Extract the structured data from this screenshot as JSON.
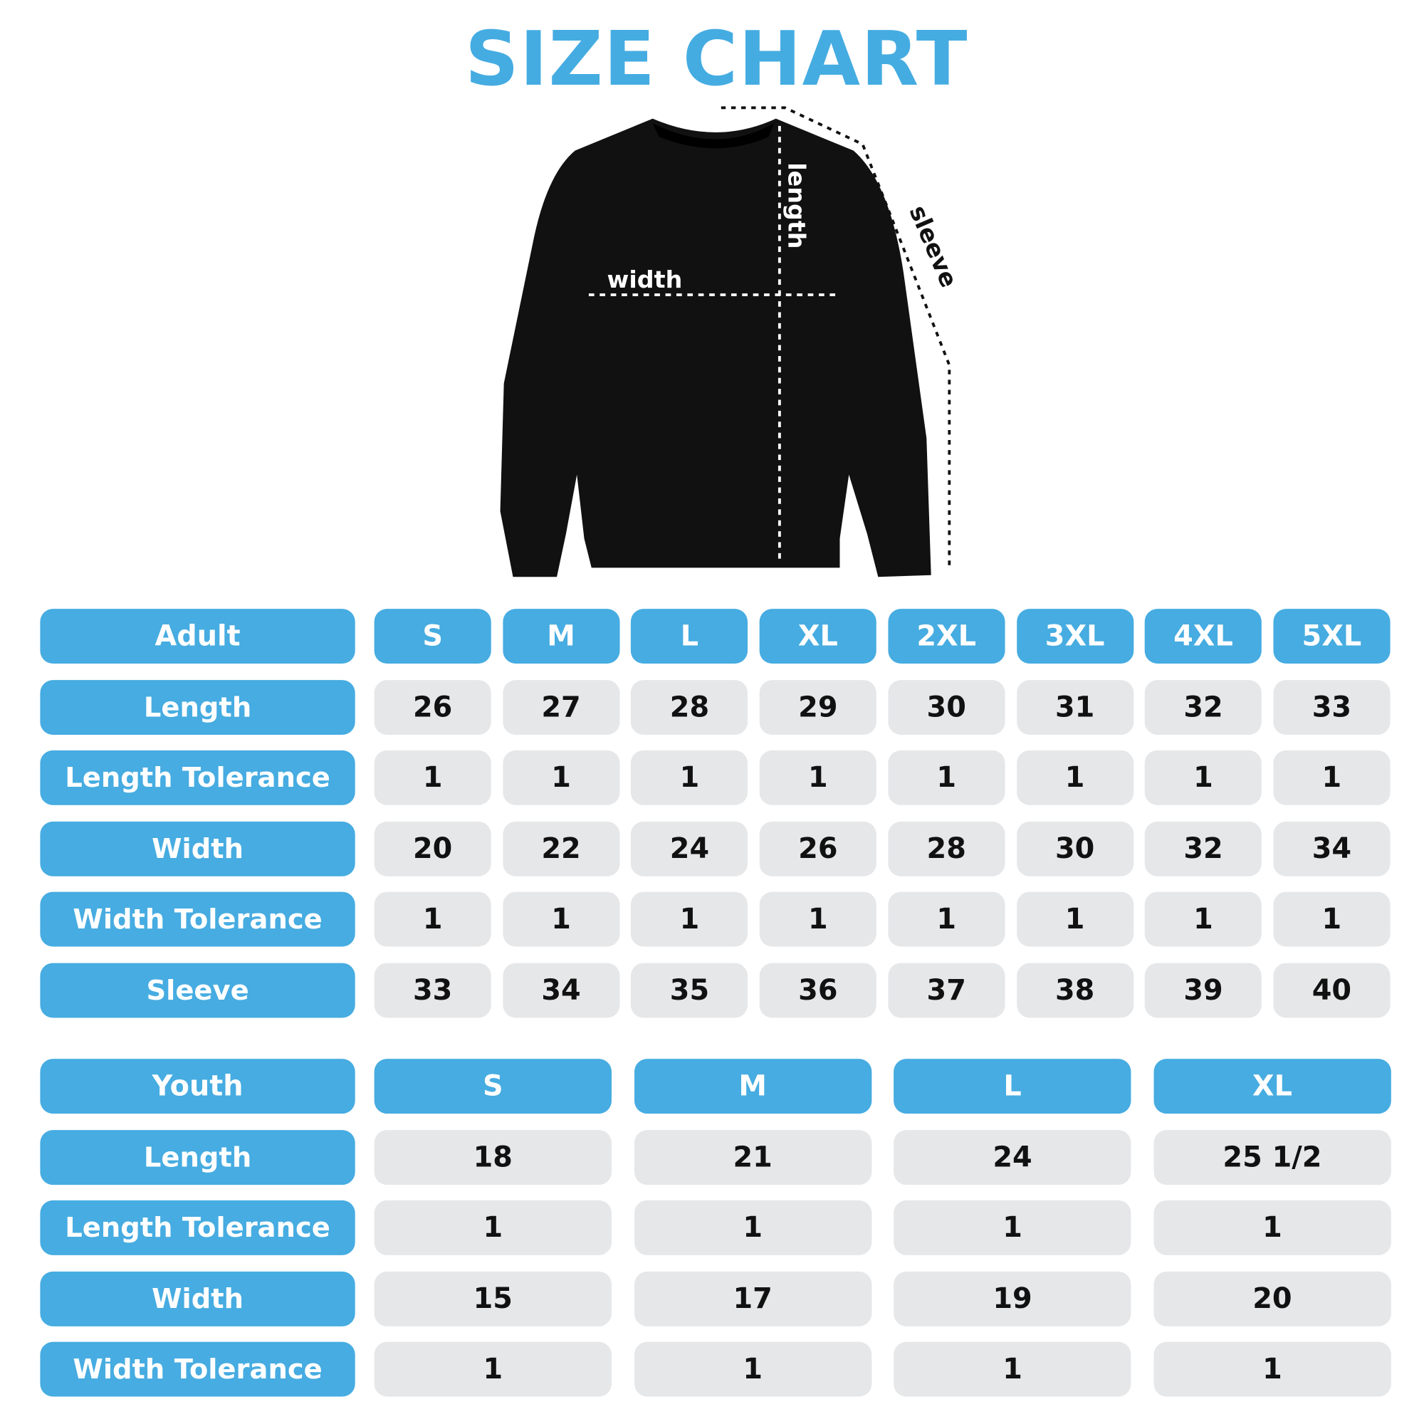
{
  "title": "SIZE CHART",
  "colors": {
    "accent": "#46ace1",
    "cell_bg": "#e6e7e9",
    "garment": "#111111"
  },
  "diagram": {
    "image": "black crewneck sweatshirt",
    "labels": {
      "width": "width",
      "length": "length",
      "sleeve": "sleeve"
    }
  },
  "adult": {
    "header": "Adult",
    "sizes": [
      "S",
      "M",
      "L",
      "XL",
      "2XL",
      "3XL",
      "4XL",
      "5XL"
    ],
    "rows": [
      {
        "label": "Length",
        "values": [
          "26",
          "27",
          "28",
          "29",
          "30",
          "31",
          "32",
          "33"
        ]
      },
      {
        "label": "Length Tolerance",
        "values": [
          "1",
          "1",
          "1",
          "1",
          "1",
          "1",
          "1",
          "1"
        ]
      },
      {
        "label": "Width",
        "values": [
          "20",
          "22",
          "24",
          "26",
          "28",
          "30",
          "32",
          "34"
        ]
      },
      {
        "label": "Width Tolerance",
        "values": [
          "1",
          "1",
          "1",
          "1",
          "1",
          "1",
          "1",
          "1"
        ]
      },
      {
        "label": "Sleeve",
        "values": [
          "33",
          "34",
          "35",
          "36",
          "37",
          "38",
          "39",
          "40"
        ]
      }
    ]
  },
  "youth": {
    "header": "Youth",
    "sizes": [
      "S",
      "M",
      "L",
      "XL"
    ],
    "rows": [
      {
        "label": "Length",
        "values": [
          "18",
          "21",
          "24",
          "25 1/2"
        ]
      },
      {
        "label": "Length Tolerance",
        "values": [
          "1",
          "1",
          "1",
          "1"
        ]
      },
      {
        "label": "Width",
        "values": [
          "15",
          "17",
          "19",
          "20"
        ]
      },
      {
        "label": "Width Tolerance",
        "values": [
          "1",
          "1",
          "1",
          "1"
        ]
      }
    ]
  }
}
